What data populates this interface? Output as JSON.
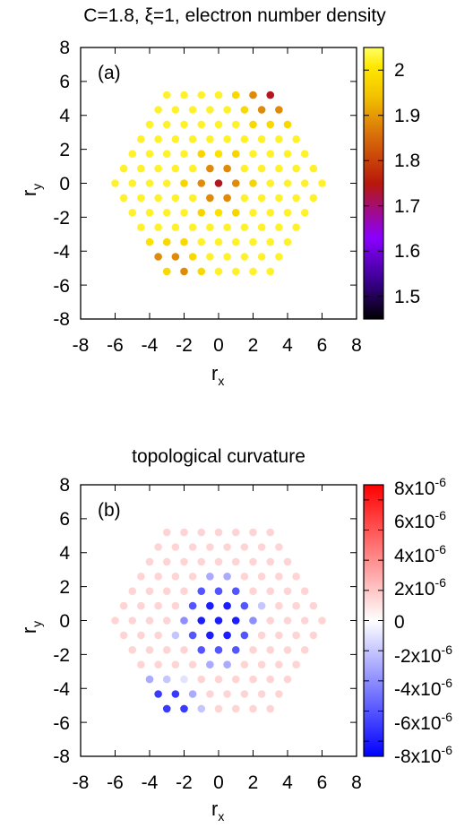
{
  "chart_data": [
    {
      "type": "scatter",
      "title": "C=1.8, ξ=1, electron number density",
      "panel_label": "(a)",
      "xlabel": "r",
      "xlabel_sub": "x",
      "ylabel": "r",
      "ylabel_sub": "y",
      "xlim": [
        -8,
        8
      ],
      "ylim": [
        -8,
        8
      ],
      "xticks": [
        "-8",
        "-6",
        "-4",
        "-2",
        "0",
        "2",
        "4",
        "6",
        "8"
      ],
      "yticks": [
        "8",
        "6",
        "4",
        "2",
        "0",
        "-2",
        "-4",
        "-6",
        "-8"
      ],
      "colorbar": {
        "range": [
          1.45,
          2.05
        ],
        "ticks": [
          2,
          1.9,
          1.8,
          1.7,
          1.6,
          1.5
        ],
        "tick_labels": [
          "2",
          "1.9",
          "1.8",
          "1.7",
          "1.6",
          "1.5"
        ],
        "palette": [
          "#000000",
          "#3a008f",
          "#8a00ff",
          "#b8180a",
          "#d9700a",
          "#f2c200",
          "#ffe800",
          "#ffff66"
        ]
      },
      "lattice": "triangular, spacing 1, hexagonal cluster radius ~6",
      "default_value": 2.0,
      "highlighted_points": [
        {
          "x": 0,
          "y": 0,
          "v": 1.7
        },
        {
          "x": -0.5,
          "y": 0.87,
          "v": 1.82
        },
        {
          "x": 0.5,
          "y": 0.87,
          "v": 1.82
        },
        {
          "x": -1,
          "y": 0,
          "v": 1.82
        },
        {
          "x": 1,
          "y": 0,
          "v": 1.82
        },
        {
          "x": -0.5,
          "y": -0.87,
          "v": 1.82
        },
        {
          "x": 0.5,
          "y": -0.87,
          "v": 1.82
        },
        {
          "x": -1,
          "y": 1.73,
          "v": 1.92
        },
        {
          "x": 1,
          "y": 1.73,
          "v": 1.92
        },
        {
          "x": -2,
          "y": 0,
          "v": 1.92
        },
        {
          "x": 2,
          "y": 0,
          "v": 1.92
        },
        {
          "x": -1,
          "y": -1.73,
          "v": 1.92
        },
        {
          "x": 1,
          "y": -1.73,
          "v": 1.92
        },
        {
          "x": 0,
          "y": 1.73,
          "v": 1.95
        },
        {
          "x": 0,
          "y": -1.73,
          "v": 1.95
        },
        {
          "x": 3,
          "y": 5.2,
          "v": 1.7
        },
        {
          "x": 2,
          "y": 5.2,
          "v": 1.82
        },
        {
          "x": 2.5,
          "y": 4.33,
          "v": 1.82
        },
        {
          "x": 3.5,
          "y": 4.33,
          "v": 1.82
        },
        {
          "x": 1,
          "y": 5.2,
          "v": 1.93
        },
        {
          "x": 1.5,
          "y": 4.33,
          "v": 1.93
        },
        {
          "x": 2,
          "y": 3.46,
          "v": 1.93
        },
        {
          "x": 3,
          "y": 3.46,
          "v": 1.93
        },
        {
          "x": 4,
          "y": 3.46,
          "v": 1.93
        },
        {
          "x": 4.5,
          "y": 4.33,
          "v": 1.95
        },
        {
          "x": -3.5,
          "y": -4.33,
          "v": 1.82
        },
        {
          "x": -2.5,
          "y": -4.33,
          "v": 1.82
        },
        {
          "x": -2,
          "y": -5.2,
          "v": 1.82
        },
        {
          "x": -3,
          "y": -5.2,
          "v": 1.93
        },
        {
          "x": -1.5,
          "y": -4.33,
          "v": 1.93
        },
        {
          "x": -1,
          "y": -5.2,
          "v": 1.93
        },
        {
          "x": -3,
          "y": -3.46,
          "v": 1.93
        },
        {
          "x": -2,
          "y": -3.46,
          "v": 1.93
        },
        {
          "x": -4,
          "y": -3.46,
          "v": 1.95
        }
      ]
    },
    {
      "type": "scatter",
      "title": "topological curvature",
      "panel_label": "(b)",
      "xlabel": "r",
      "xlabel_sub": "x",
      "ylabel": "r",
      "ylabel_sub": "y",
      "xlim": [
        -8,
        8
      ],
      "ylim": [
        -8,
        8
      ],
      "xticks": [
        "-8",
        "-6",
        "-4",
        "-2",
        "0",
        "2",
        "4",
        "6",
        "8"
      ],
      "yticks": [
        "8",
        "6",
        "4",
        "2",
        "0",
        "-2",
        "-4",
        "-6",
        "-8"
      ],
      "colorbar": {
        "range": [
          -9e-06,
          9e-06
        ],
        "ticks": [
          8e-06,
          6e-06,
          4e-06,
          2e-06,
          0,
          -2e-06,
          -4e-06,
          -6e-06,
          -8e-06
        ],
        "tick_labels": [
          "8x10",
          "6x10",
          "4x10",
          "2x10",
          "0",
          "-2x10",
          "-4x10",
          "-6x10",
          "-8x10"
        ],
        "tick_exponents": [
          "-6",
          "-6",
          "-6",
          "-6",
          "",
          "-6",
          "-6",
          "-6",
          "-6"
        ],
        "palette": [
          "#0000ff",
          "#ffffff",
          "#ff0000"
        ]
      },
      "lattice": "triangular, spacing 1, hexagonal cluster radius ~6",
      "default_value": 1.5e-06,
      "highlighted_points": [
        {
          "x": 0,
          "y": 0,
          "v": -8e-06
        },
        {
          "x": -0.5,
          "y": 0.87,
          "v": -8e-06
        },
        {
          "x": 0.5,
          "y": 0.87,
          "v": -8e-06
        },
        {
          "x": -1,
          "y": 0,
          "v": -8e-06
        },
        {
          "x": 1,
          "y": 0,
          "v": -8e-06
        },
        {
          "x": -0.5,
          "y": -0.87,
          "v": -8e-06
        },
        {
          "x": 0.5,
          "y": -0.87,
          "v": -8e-06
        },
        {
          "x": -1,
          "y": 1.73,
          "v": -6e-06
        },
        {
          "x": 0,
          "y": 1.73,
          "v": -6e-06
        },
        {
          "x": 1,
          "y": 1.73,
          "v": -6e-06
        },
        {
          "x": -1.5,
          "y": 0.87,
          "v": -6e-06
        },
        {
          "x": 1.5,
          "y": 0.87,
          "v": -6e-06
        },
        {
          "x": -2,
          "y": 0,
          "v": -4e-06
        },
        {
          "x": 2,
          "y": 0,
          "v": -4e-06
        },
        {
          "x": -1.5,
          "y": -0.87,
          "v": -6e-06
        },
        {
          "x": 1.5,
          "y": -0.87,
          "v": -6e-06
        },
        {
          "x": -1,
          "y": -1.73,
          "v": -6e-06
        },
        {
          "x": 0,
          "y": -1.73,
          "v": -6e-06
        },
        {
          "x": 1,
          "y": -1.73,
          "v": -6e-06
        },
        {
          "x": -0.5,
          "y": 2.6,
          "v": -3e-06
        },
        {
          "x": 0.5,
          "y": 2.6,
          "v": -3e-06
        },
        {
          "x": -0.5,
          "y": -2.6,
          "v": -3e-06
        },
        {
          "x": 0.5,
          "y": -2.6,
          "v": -3e-06
        },
        {
          "x": 2.5,
          "y": 0.87,
          "v": -2e-06
        },
        {
          "x": -2.5,
          "y": -0.87,
          "v": -2e-06
        },
        {
          "x": 2.5,
          "y": 5.2,
          "v": -7e-06
        },
        {
          "x": 2,
          "y": 4.33,
          "v": -7e-06
        },
        {
          "x": 3,
          "y": 4.33,
          "v": -7e-06
        },
        {
          "x": 2.5,
          "y": 3.46,
          "v": -6e-06
        },
        {
          "x": 3.5,
          "y": 3.46,
          "v": -6e-06
        },
        {
          "x": 4,
          "y": 4.33,
          "v": -6e-06
        },
        {
          "x": 1.5,
          "y": 5.2,
          "v": -3e-06
        },
        {
          "x": 1.5,
          "y": 3.46,
          "v": -3e-06
        },
        {
          "x": 3.5,
          "y": 5.2,
          "v": -3e-06
        },
        {
          "x": 4.5,
          "y": 3.46,
          "v": -2e-06
        },
        {
          "x": 3,
          "y": 2.6,
          "v": -2e-06
        },
        {
          "x": 2,
          "y": 6.06,
          "v": -1e-06
        },
        {
          "x": -4.5,
          "y": -4.33,
          "v": -7e-06
        },
        {
          "x": -3.5,
          "y": -4.33,
          "v": -7e-06
        },
        {
          "x": -2.5,
          "y": -4.33,
          "v": -7e-06
        },
        {
          "x": -4,
          "y": -5.2,
          "v": -7e-06
        },
        {
          "x": -3,
          "y": -5.2,
          "v": -7e-06
        },
        {
          "x": -2,
          "y": -5.2,
          "v": -7e-06
        },
        {
          "x": -2.5,
          "y": -6.06,
          "v": -7e-06
        },
        {
          "x": -3.5,
          "y": -6.06,
          "v": -3e-06
        },
        {
          "x": -5,
          "y": -3.46,
          "v": -3e-06
        },
        {
          "x": -4,
          "y": -3.46,
          "v": -3e-06
        },
        {
          "x": -3,
          "y": -3.46,
          "v": -2e-06
        },
        {
          "x": -1.5,
          "y": -4.33,
          "v": -3e-06
        },
        {
          "x": -1,
          "y": -5.2,
          "v": -2e-06
        },
        {
          "x": -1.5,
          "y": -6.06,
          "v": -2e-06
        },
        {
          "x": -2,
          "y": -3.46,
          "v": -1e-06
        }
      ]
    }
  ]
}
